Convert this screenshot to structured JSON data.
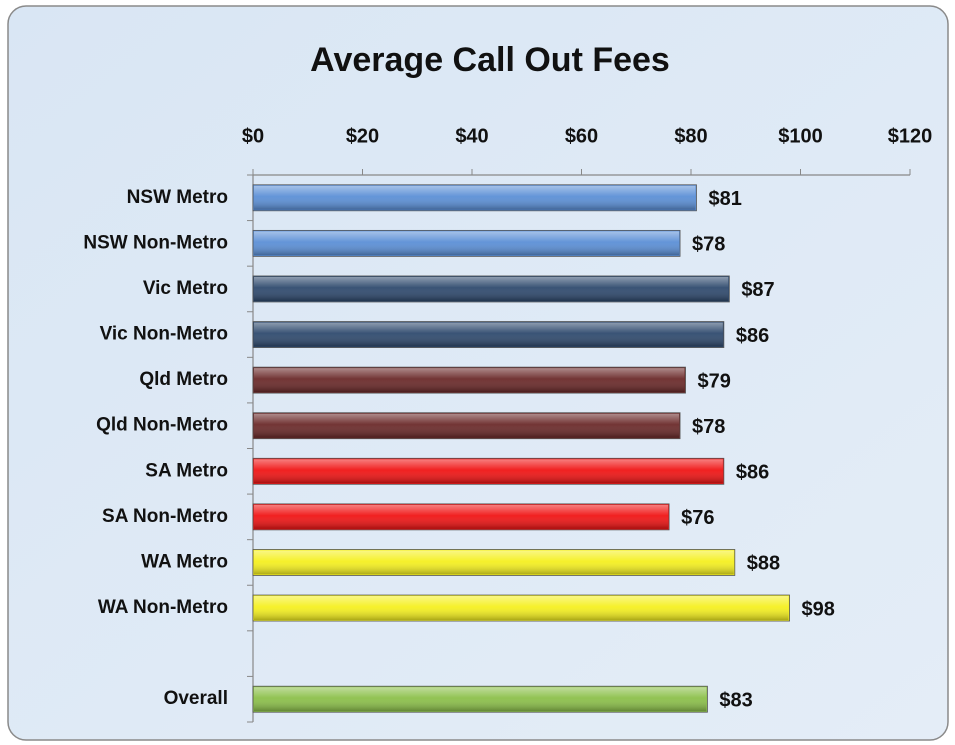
{
  "chart_data": {
    "type": "bar",
    "orientation": "horizontal",
    "title": "Average Call Out Fees",
    "categories": [
      "NSW Metro",
      "NSW Non-Metro",
      "Vic Metro",
      "Vic Non-Metro",
      "Qld Metro",
      "Qld Non-Metro",
      "SA Metro",
      "SA Non-Metro",
      "WA Metro",
      "WA Non-Metro",
      null,
      "Overall"
    ],
    "values": [
      81,
      78,
      87,
      86,
      79,
      78,
      86,
      76,
      88,
      98,
      null,
      83
    ],
    "value_labels": [
      "$81",
      "$78",
      "$87",
      "$86",
      "$79",
      "$78",
      "$86",
      "$76",
      "$88",
      "$98",
      null,
      "$83"
    ],
    "colors": [
      "#5b8fd6",
      "#5b8fd6",
      "#2f4a6e",
      "#2f4a6e",
      "#6b2a2a",
      "#6b2a2a",
      "#f01515",
      "#f01515",
      "#f5f020",
      "#f5f020",
      null,
      "#8cc04a"
    ],
    "xlim": [
      0,
      120
    ],
    "xticks": [
      {
        "value": 0,
        "label": "$0"
      },
      {
        "value": 20,
        "label": "$20"
      },
      {
        "value": 40,
        "label": "$40"
      },
      {
        "value": 60,
        "label": "$60"
      },
      {
        "value": 80,
        "label": "$80"
      },
      {
        "value": 100,
        "label": "$100"
      },
      {
        "value": 120,
        "label": "$120"
      }
    ],
    "grid": false
  }
}
